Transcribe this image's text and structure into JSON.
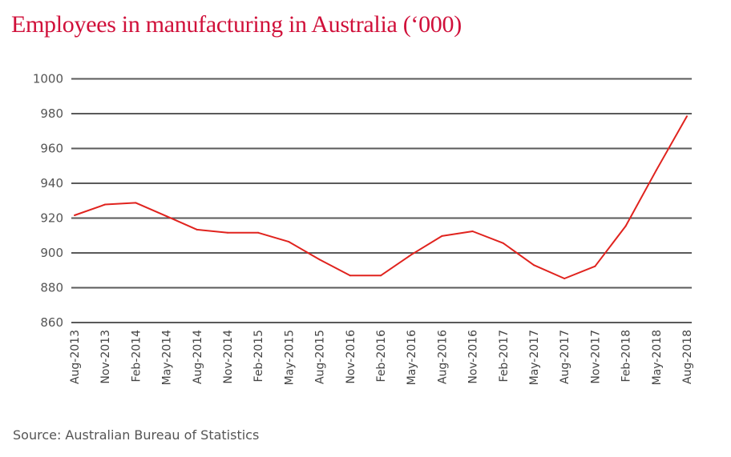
{
  "chart_data": {
    "type": "line",
    "title": "Employees in manufacturing in Australia (‘000)",
    "xlabel": "",
    "ylabel": "",
    "ylim": [
      860,
      1000
    ],
    "yticks": [
      860,
      880,
      900,
      920,
      940,
      960,
      980,
      1000
    ],
    "grid": true,
    "legend": "none",
    "categories": [
      "Aug-2013",
      "Nov-2013",
      "Feb-2014",
      "May-2014",
      "Aug-2014",
      "Nov-2014",
      "Feb-2015",
      "May-2015",
      "Aug-2015",
      "Nov-2016",
      "Feb-2016",
      "May-2016",
      "Aug-2016",
      "Nov-2016",
      "Feb-2017",
      "May-2017",
      "Aug-2017",
      "Nov-2017",
      "Feb-2018",
      "May-2018",
      "Aug-2018"
    ],
    "series": [
      {
        "name": "Employees in manufacturing",
        "color": "#e0231e",
        "values": [
          921.6,
          927.8,
          928.8,
          921.1,
          913.4,
          911.6,
          911.6,
          906.4,
          896.2,
          887.0,
          887.0,
          899.0,
          909.7,
          912.4,
          905.6,
          893.0,
          885.3,
          892.3,
          915.4,
          947.5,
          978.5
        ]
      }
    ],
    "source": "Source: Australian Bureau of Statistics"
  },
  "colors": {
    "title": "#d0103a",
    "line": "#e0231e",
    "grid": "#5a5a5a",
    "text": "#555555"
  }
}
